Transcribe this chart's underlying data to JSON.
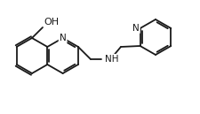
{
  "bg_color": "#ffffff",
  "line_color": "#1a1a1a",
  "line_width": 1.3,
  "font_size": 7.5,
  "figsize": [
    2.25,
    1.29
  ],
  "dpi": 100,
  "atoms": {
    "N_quin": "N",
    "OH": "OH",
    "NH": "NH",
    "N_py": "N"
  }
}
